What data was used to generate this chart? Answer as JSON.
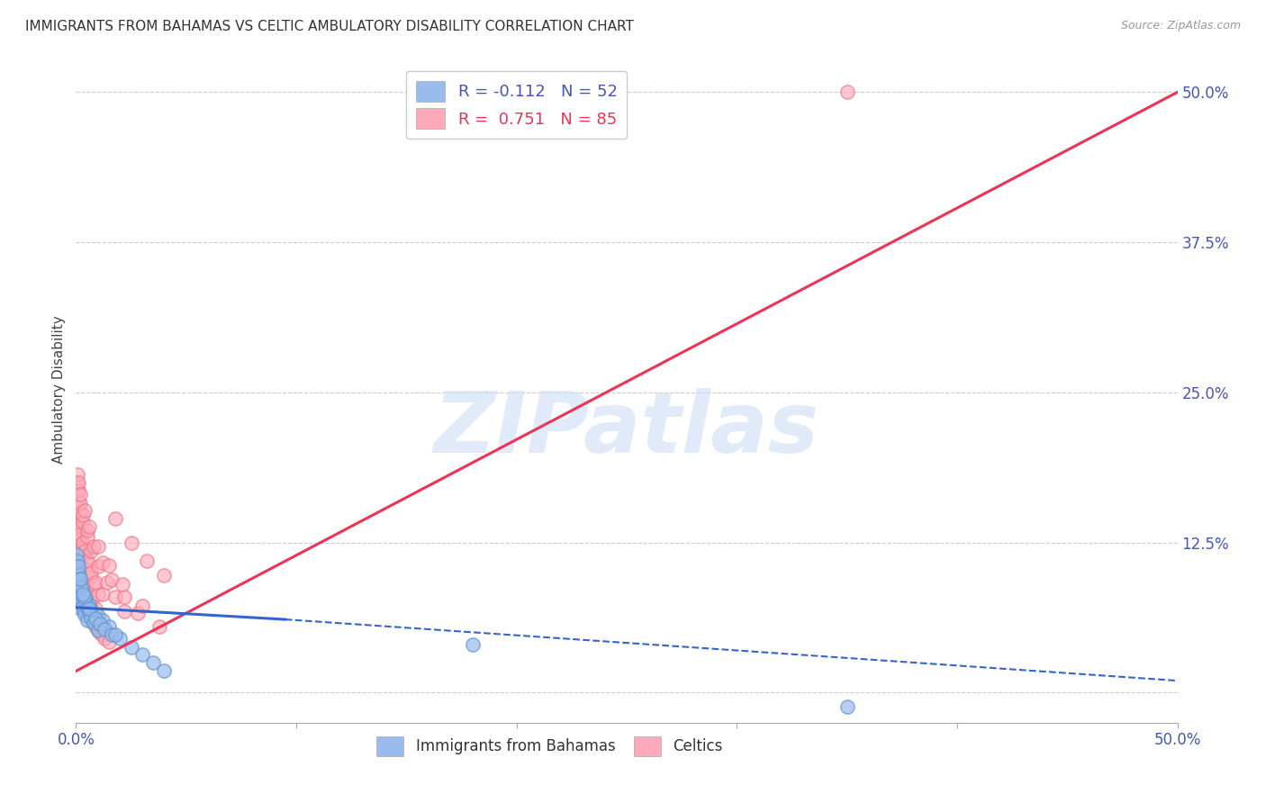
{
  "title": "IMMIGRANTS FROM BAHAMAS VS CELTIC AMBULATORY DISABILITY CORRELATION CHART",
  "source": "Source: ZipAtlas.com",
  "ylabel": "Ambulatory Disability",
  "xlim": [
    0.0,
    0.5
  ],
  "ylim": [
    -0.025,
    0.53
  ],
  "xtick_positions": [
    0.0,
    0.1,
    0.2,
    0.3,
    0.4,
    0.5
  ],
  "xtick_labels_show": [
    "0.0%",
    "",
    "",
    "",
    "",
    "50.0%"
  ],
  "ytick_positions": [
    0.0,
    0.125,
    0.25,
    0.375,
    0.5
  ],
  "ytick_labels_show": [
    "",
    "12.5%",
    "25.0%",
    "37.5%",
    "50.0%"
  ],
  "grid_color": "#cccccc",
  "background_color": "#ffffff",
  "watermark_text": "ZIPatlas",
  "bahamas_color": "#99bbee",
  "bahamas_edge": "#6699cc",
  "bahamas_line_color": "#3366cc",
  "celtics_color": "#ffaabb",
  "celtics_edge": "#ee7788",
  "celtics_line_color": "#ee3355",
  "bahamas_trend_x0": 0.0,
  "bahamas_trend_x_solid_end": 0.095,
  "bahamas_trend_x1": 0.5,
  "bahamas_trend_y0": 0.071,
  "bahamas_trend_y_solid_end": 0.061,
  "bahamas_trend_y1": 0.01,
  "celtics_trend_x0": 0.0,
  "celtics_trend_x1": 0.5,
  "celtics_trend_y0": 0.018,
  "celtics_trend_y1": 0.5,
  "bahamas_points_x": [
    0.0005,
    0.001,
    0.0015,
    0.002,
    0.0008,
    0.0012,
    0.0018,
    0.0025,
    0.003,
    0.0035,
    0.004,
    0.0045,
    0.005,
    0.006,
    0.007,
    0.008,
    0.009,
    0.01,
    0.012,
    0.015,
    0.0005,
    0.001,
    0.002,
    0.003,
    0.004,
    0.005,
    0.006,
    0.007,
    0.008,
    0.01,
    0.0008,
    0.0015,
    0.0025,
    0.004,
    0.006,
    0.009,
    0.011,
    0.013,
    0.016,
    0.02,
    0.0003,
    0.0007,
    0.001,
    0.002,
    0.003,
    0.018,
    0.025,
    0.03,
    0.035,
    0.04,
    0.18,
    0.35
  ],
  "bahamas_points_y": [
    0.085,
    0.092,
    0.078,
    0.08,
    0.075,
    0.088,
    0.07,
    0.082,
    0.072,
    0.068,
    0.065,
    0.078,
    0.06,
    0.073,
    0.069,
    0.063,
    0.058,
    0.064,
    0.06,
    0.055,
    0.095,
    0.1,
    0.09,
    0.085,
    0.076,
    0.071,
    0.067,
    0.062,
    0.058,
    0.052,
    0.108,
    0.098,
    0.088,
    0.08,
    0.07,
    0.062,
    0.057,
    0.053,
    0.048,
    0.045,
    0.115,
    0.11,
    0.105,
    0.095,
    0.082,
    0.048,
    0.038,
    0.032,
    0.025,
    0.018,
    0.04,
    -0.012
  ],
  "celtics_points_x": [
    0.0004,
    0.0008,
    0.001,
    0.0015,
    0.002,
    0.0025,
    0.003,
    0.0035,
    0.004,
    0.0045,
    0.005,
    0.006,
    0.007,
    0.008,
    0.009,
    0.01,
    0.011,
    0.012,
    0.013,
    0.015,
    0.0004,
    0.0008,
    0.001,
    0.002,
    0.003,
    0.004,
    0.005,
    0.006,
    0.007,
    0.009,
    0.0006,
    0.001,
    0.002,
    0.003,
    0.004,
    0.005,
    0.006,
    0.007,
    0.008,
    0.01,
    0.0004,
    0.0007,
    0.001,
    0.002,
    0.003,
    0.004,
    0.005,
    0.007,
    0.009,
    0.012,
    0.0005,
    0.001,
    0.002,
    0.003,
    0.005,
    0.007,
    0.01,
    0.014,
    0.018,
    0.022,
    0.0006,
    0.001,
    0.002,
    0.003,
    0.005,
    0.008,
    0.012,
    0.016,
    0.022,
    0.028,
    0.0005,
    0.001,
    0.002,
    0.004,
    0.006,
    0.01,
    0.015,
    0.021,
    0.03,
    0.038,
    0.025,
    0.032,
    0.018,
    0.04,
    0.35
  ],
  "celtics_points_y": [
    0.105,
    0.115,
    0.122,
    0.11,
    0.098,
    0.095,
    0.088,
    0.082,
    0.078,
    0.072,
    0.068,
    0.065,
    0.06,
    0.058,
    0.055,
    0.052,
    0.05,
    0.048,
    0.045,
    0.042,
    0.13,
    0.125,
    0.118,
    0.108,
    0.1,
    0.092,
    0.085,
    0.08,
    0.075,
    0.07,
    0.142,
    0.135,
    0.128,
    0.12,
    0.115,
    0.108,
    0.102,
    0.096,
    0.09,
    0.082,
    0.155,
    0.148,
    0.14,
    0.132,
    0.125,
    0.118,
    0.11,
    0.1,
    0.092,
    0.082,
    0.168,
    0.16,
    0.15,
    0.142,
    0.13,
    0.118,
    0.105,
    0.092,
    0.08,
    0.068,
    0.175,
    0.168,
    0.158,
    0.148,
    0.135,
    0.122,
    0.108,
    0.094,
    0.08,
    0.066,
    0.182,
    0.175,
    0.165,
    0.152,
    0.138,
    0.122,
    0.106,
    0.09,
    0.072,
    0.055,
    0.125,
    0.11,
    0.145,
    0.098,
    0.5
  ]
}
